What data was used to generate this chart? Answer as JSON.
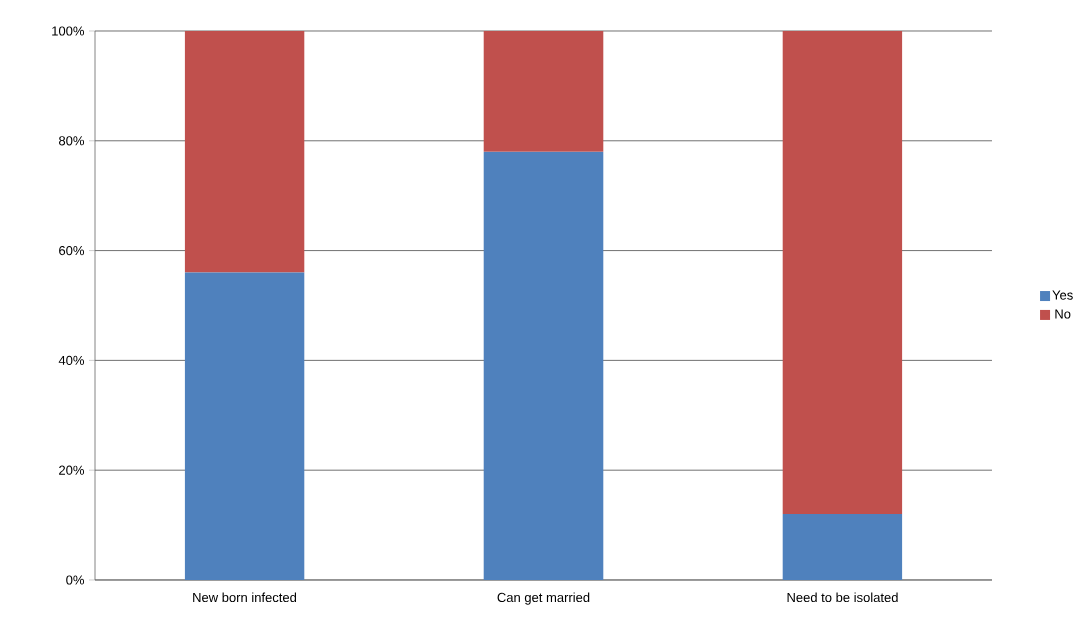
{
  "chart_data": {
    "type": "bar",
    "stacked": true,
    "categories": [
      "New born infected",
      "Can get married",
      "Need to be isolated"
    ],
    "series": [
      {
        "name": "Yes",
        "color": "#4f81bd",
        "values": [
          56,
          78,
          12
        ]
      },
      {
        "name": "No",
        "color": "#c0504d",
        "values": [
          44,
          22,
          88
        ]
      }
    ],
    "ylim": [
      0,
      100
    ],
    "yticks": [
      {
        "value": 0,
        "label": "0%"
      },
      {
        "value": 20,
        "label": "20%"
      },
      {
        "value": 40,
        "label": "40%"
      },
      {
        "value": 60,
        "label": "60%"
      },
      {
        "value": 80,
        "label": "80%"
      },
      {
        "value": 100,
        "label": "100%"
      }
    ],
    "grid": "y",
    "legend": "right"
  }
}
